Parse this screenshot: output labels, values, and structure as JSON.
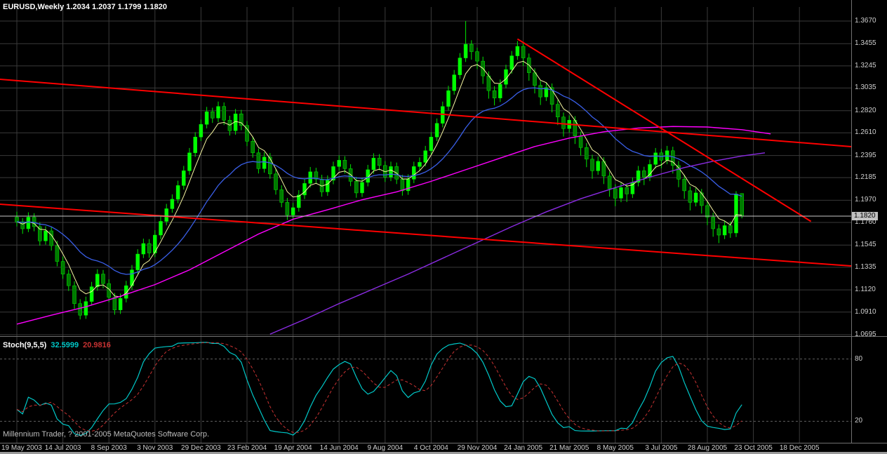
{
  "window": {
    "title": "EURUSD,Weekly 1.2034 1.2037 1.1799 1.1820",
    "symbol": "EURUSD",
    "timeframe": "Weekly",
    "last_bar": {
      "open": "1.2034",
      "high": "1.2037",
      "low": "1.1799",
      "close": "1.1820"
    }
  },
  "colors": {
    "background": "#000000",
    "grid": "#3A3A3A",
    "separator": "#707070",
    "bull": "#00FF00",
    "bear": "#007A00",
    "wick": "#00E600",
    "ma_fast": "#F5F5A0",
    "ma_medium": "#3A5FE8",
    "ma_slow": "#FF00FF",
    "ma_slowest": "#8A2BE2",
    "trendline": "#FF0000",
    "price_line": "#C8C8C8",
    "stoch_k": "#00C8C8",
    "stoch_d": "#C83232",
    "level": "#606060",
    "axis_text": "#CFCFCF",
    "price_tag_bg": "#C0C0C0",
    "price_tag_text": "#000000"
  },
  "price_axis": {
    "labels": [
      "1.3670",
      "1.3455",
      "1.3245",
      "1.3035",
      "1.2820",
      "1.2610",
      "1.2395",
      "1.2185",
      "1.1970",
      "1.1760",
      "1.1545",
      "1.1335",
      "1.1120",
      "1.0910",
      "1.0695"
    ],
    "current": "1.1820"
  },
  "time_axis": {
    "labels": [
      "19 May 2003",
      "14 Jul 2003",
      "8 Sep 2003",
      "3 Nov 2003",
      "29 Dec 2003",
      "23 Feb 2004",
      "19 Apr 2004",
      "14 Jun 2004",
      "9 Aug 2004",
      "4 Oct 2004",
      "29 Nov 2004",
      "24 Jan 2005",
      "21 Mar 2005",
      "8 May 2005",
      "3 Jul 2005",
      "28 Aug 2005",
      "23 Oct 2005",
      "18 Dec 2005"
    ]
  },
  "indicator": {
    "label": "Stoch(9,5,5)",
    "k_value": "32.5999",
    "d_value": "20.9816",
    "levels": [
      "80",
      "20"
    ]
  },
  "footer": {
    "copyright": "Millennium Trader, ? 2001-2005 MetaQuotes Software Corp."
  },
  "chart_data": {
    "type": "candlestick",
    "symbol": "EURUSD",
    "timeframe": "W1",
    "title": "EURUSD,Weekly",
    "y_axis": {
      "min": 1.0695,
      "max": 1.367,
      "grid_step": 0.02125
    },
    "price_gridlines": [
      1.367,
      1.3455,
      1.3245,
      1.3035,
      1.282,
      1.261,
      1.2395,
      1.2185,
      1.197,
      1.176,
      1.1545,
      1.1335,
      1.112,
      1.091,
      1.0695
    ],
    "current_price": 1.182,
    "x_labels": [
      "19 May 2003",
      "14 Jul 2003",
      "8 Sep 2003",
      "3 Nov 2003",
      "29 Dec 2003",
      "23 Feb 2004",
      "19 Apr 2004",
      "14 Jun 2004",
      "9 Aug 2004",
      "4 Oct 2004",
      "29 Nov 2004",
      "24 Jan 2005",
      "21 Mar 2005",
      "8 May 2005",
      "3 Jul 2005",
      "28 Aug 2005",
      "23 Oct 2005",
      "18 Dec 2005"
    ],
    "candles_ohlc": [
      [
        1.181,
        1.1862,
        1.1722,
        1.1766
      ],
      [
        1.1766,
        1.1801,
        1.1652,
        1.17
      ],
      [
        1.17,
        1.1856,
        1.1668,
        1.181
      ],
      [
        1.181,
        1.1848,
        1.1676,
        1.172
      ],
      [
        1.172,
        1.1762,
        1.154,
        1.1585
      ],
      [
        1.1585,
        1.1724,
        1.1549,
        1.168
      ],
      [
        1.168,
        1.1716,
        1.1493,
        1.154
      ],
      [
        1.154,
        1.1585,
        1.1344,
        1.139
      ],
      [
        1.139,
        1.1436,
        1.1225,
        1.127
      ],
      [
        1.127,
        1.1312,
        1.111,
        1.116
      ],
      [
        1.116,
        1.1202,
        1.0941,
        1.099
      ],
      [
        1.099,
        1.1032,
        1.084,
        1.088
      ],
      [
        1.088,
        1.1056,
        1.0845,
        1.101
      ],
      [
        1.101,
        1.1196,
        1.0972,
        1.115
      ],
      [
        1.115,
        1.1316,
        1.1112,
        1.127
      ],
      [
        1.127,
        1.1309,
        1.1136,
        1.118
      ],
      [
        1.118,
        1.1221,
        1.1004,
        1.105
      ],
      [
        1.105,
        1.1091,
        1.0885,
        1.093
      ],
      [
        1.093,
        1.1085,
        1.0892,
        1.104
      ],
      [
        1.104,
        1.1206,
        1.1002,
        1.116
      ],
      [
        1.116,
        1.1356,
        1.1122,
        1.131
      ],
      [
        1.131,
        1.1506,
        1.1272,
        1.146
      ],
      [
        1.146,
        1.1606,
        1.1422,
        1.156
      ],
      [
        1.156,
        1.1602,
        1.1424,
        1.147
      ],
      [
        1.147,
        1.1686,
        1.1432,
        1.164
      ],
      [
        1.164,
        1.1816,
        1.1602,
        1.177
      ],
      [
        1.177,
        1.1936,
        1.1732,
        1.189
      ],
      [
        1.189,
        1.2026,
        1.1852,
        1.198
      ],
      [
        1.198,
        1.2156,
        1.1942,
        1.211
      ],
      [
        1.211,
        1.2296,
        1.2072,
        1.225
      ],
      [
        1.225,
        1.2466,
        1.2212,
        1.242
      ],
      [
        1.242,
        1.2616,
        1.2382,
        1.257
      ],
      [
        1.257,
        1.2736,
        1.2532,
        1.269
      ],
      [
        1.269,
        1.2856,
        1.2652,
        1.281
      ],
      [
        1.281,
        1.2848,
        1.2704,
        1.275
      ],
      [
        1.275,
        1.2906,
        1.2712,
        1.286
      ],
      [
        1.286,
        1.2898,
        1.2684,
        1.273
      ],
      [
        1.273,
        1.2772,
        1.2584,
        1.263
      ],
      [
        1.263,
        1.2836,
        1.2592,
        1.279
      ],
      [
        1.279,
        1.2828,
        1.2634,
        1.268
      ],
      [
        1.268,
        1.2722,
        1.2484,
        1.253
      ],
      [
        1.253,
        1.2572,
        1.2374,
        1.242
      ],
      [
        1.242,
        1.2462,
        1.2224,
        1.227
      ],
      [
        1.227,
        1.2426,
        1.2232,
        1.238
      ],
      [
        1.238,
        1.2418,
        1.2174,
        1.222
      ],
      [
        1.222,
        1.2262,
        1.2024,
        1.207
      ],
      [
        1.207,
        1.2112,
        1.1904,
        1.195
      ],
      [
        1.195,
        1.1992,
        1.1784,
        1.183
      ],
      [
        1.183,
        1.1946,
        1.1792,
        1.19
      ],
      [
        1.19,
        1.2066,
        1.1862,
        1.202
      ],
      [
        1.202,
        1.2176,
        1.1982,
        1.213
      ],
      [
        1.213,
        1.2286,
        1.2092,
        1.224
      ],
      [
        1.224,
        1.2278,
        1.2124,
        1.217
      ],
      [
        1.217,
        1.2212,
        1.2004,
        1.205
      ],
      [
        1.205,
        1.2206,
        1.2012,
        1.216
      ],
      [
        1.216,
        1.2336,
        1.2122,
        1.229
      ],
      [
        1.229,
        1.2396,
        1.2252,
        1.235
      ],
      [
        1.235,
        1.2388,
        1.2224,
        1.227
      ],
      [
        1.227,
        1.2312,
        1.2104,
        1.215
      ],
      [
        1.215,
        1.2192,
        1.1994,
        1.204
      ],
      [
        1.204,
        1.2186,
        1.2002,
        1.214
      ],
      [
        1.214,
        1.2306,
        1.2102,
        1.226
      ],
      [
        1.226,
        1.2416,
        1.2222,
        1.237
      ],
      [
        1.237,
        1.2408,
        1.2254,
        1.23
      ],
      [
        1.23,
        1.2342,
        1.2144,
        1.219
      ],
      [
        1.219,
        1.2336,
        1.2152,
        1.229
      ],
      [
        1.229,
        1.2328,
        1.2124,
        1.217
      ],
      [
        1.217,
        1.2212,
        1.2014,
        1.206
      ],
      [
        1.206,
        1.2216,
        1.2022,
        1.217
      ],
      [
        1.217,
        1.2336,
        1.2132,
        1.229
      ],
      [
        1.229,
        1.2376,
        1.2252,
        1.233
      ],
      [
        1.233,
        1.2486,
        1.2292,
        1.244
      ],
      [
        1.244,
        1.2616,
        1.2402,
        1.257
      ],
      [
        1.257,
        1.2746,
        1.2532,
        1.27
      ],
      [
        1.27,
        1.2906,
        1.2662,
        1.286
      ],
      [
        1.286,
        1.3056,
        1.2822,
        1.301
      ],
      [
        1.301,
        1.3206,
        1.2972,
        1.316
      ],
      [
        1.316,
        1.3366,
        1.3122,
        1.332
      ],
      [
        1.332,
        1.367,
        1.3282,
        1.345
      ],
      [
        1.345,
        1.3488,
        1.3304,
        1.338
      ],
      [
        1.338,
        1.3418,
        1.3214,
        1.329
      ],
      [
        1.329,
        1.3332,
        1.3074,
        1.315
      ],
      [
        1.315,
        1.3192,
        1.2934,
        1.301
      ],
      [
        1.301,
        1.3052,
        1.287,
        1.294
      ],
      [
        1.294,
        1.3116,
        1.2902,
        1.307
      ],
      [
        1.307,
        1.3256,
        1.3032,
        1.321
      ],
      [
        1.321,
        1.3386,
        1.3172,
        1.334
      ],
      [
        1.334,
        1.348,
        1.3302,
        1.343
      ],
      [
        1.343,
        1.3468,
        1.3244,
        1.332
      ],
      [
        1.332,
        1.3362,
        1.3104,
        1.318
      ],
      [
        1.318,
        1.3222,
        1.2984,
        1.306
      ],
      [
        1.306,
        1.3102,
        1.2874,
        1.295
      ],
      [
        1.295,
        1.3086,
        1.2912,
        1.304
      ],
      [
        1.304,
        1.3078,
        1.2804,
        1.288
      ],
      [
        1.288,
        1.2922,
        1.2684,
        1.276
      ],
      [
        1.276,
        1.2802,
        1.2574,
        1.265
      ],
      [
        1.265,
        1.2776,
        1.2612,
        1.273
      ],
      [
        1.273,
        1.2768,
        1.2504,
        1.258
      ],
      [
        1.258,
        1.2622,
        1.2394,
        1.247
      ],
      [
        1.247,
        1.2512,
        1.2284,
        1.236
      ],
      [
        1.236,
        1.2402,
        1.2174,
        1.225
      ],
      [
        1.225,
        1.2386,
        1.2212,
        1.234
      ],
      [
        1.234,
        1.2378,
        1.2124,
        1.22
      ],
      [
        1.22,
        1.2242,
        1.2004,
        1.208
      ],
      [
        1.208,
        1.2122,
        1.1914,
        1.199
      ],
      [
        1.199,
        1.2136,
        1.1952,
        1.209
      ],
      [
        1.209,
        1.2128,
        1.1954,
        1.203
      ],
      [
        1.203,
        1.2186,
        1.1992,
        1.214
      ],
      [
        1.214,
        1.2296,
        1.2102,
        1.225
      ],
      [
        1.225,
        1.2288,
        1.2114,
        1.219
      ],
      [
        1.219,
        1.2356,
        1.2152,
        1.231
      ],
      [
        1.231,
        1.2466,
        1.2272,
        1.242
      ],
      [
        1.242,
        1.2458,
        1.2274,
        1.235
      ],
      [
        1.235,
        1.2486,
        1.2312,
        1.244
      ],
      [
        1.244,
        1.2478,
        1.2224,
        1.23
      ],
      [
        1.23,
        1.2342,
        1.2094,
        1.217
      ],
      [
        1.217,
        1.2212,
        1.1984,
        1.206
      ],
      [
        1.206,
        1.2102,
        1.1874,
        1.195
      ],
      [
        1.195,
        1.2086,
        1.1912,
        1.204
      ],
      [
        1.204,
        1.2078,
        1.1844,
        1.192
      ],
      [
        1.192,
        1.1962,
        1.1734,
        1.181
      ],
      [
        1.181,
        1.1852,
        1.1624,
        1.17
      ],
      [
        1.17,
        1.1742,
        1.1564,
        1.164
      ],
      [
        1.164,
        1.1776,
        1.1602,
        1.173
      ],
      [
        1.173,
        1.1768,
        1.1614,
        1.166
      ],
      [
        1.166,
        1.2056,
        1.1622,
        1.203
      ],
      [
        1.2034,
        1.2037,
        1.1799,
        1.182
      ]
    ],
    "overlays": {
      "ma_fast": {
        "type": "ema",
        "period": 5
      },
      "ma_medium": {
        "type": "ema",
        "period": 20
      },
      "ma_slow": {
        "name": "long-ma-magenta",
        "points": [
          [
            0,
            1.0795
          ],
          [
            6,
            1.088
          ],
          [
            12,
            1.096
          ],
          [
            18,
            1.106
          ],
          [
            24,
            1.117
          ],
          [
            30,
            1.131
          ],
          [
            36,
            1.148
          ],
          [
            42,
            1.165
          ],
          [
            48,
            1.179
          ],
          [
            54,
            1.188
          ],
          [
            60,
            1.1975
          ],
          [
            66,
            1.205
          ],
          [
            72,
            1.215
          ],
          [
            78,
            1.226
          ],
          [
            84,
            1.237
          ],
          [
            90,
            1.248
          ],
          [
            96,
            1.256
          ],
          [
            102,
            1.262
          ],
          [
            108,
            1.2655
          ],
          [
            114,
            1.267
          ],
          [
            120,
            1.2665
          ],
          [
            126,
            1.264
          ],
          [
            131,
            1.26
          ]
        ]
      },
      "ma_slowest": {
        "name": "long-ma-violet",
        "points": [
          [
            44,
            1.07
          ],
          [
            50,
            1.084
          ],
          [
            56,
            1.099
          ],
          [
            62,
            1.113
          ],
          [
            68,
            1.127
          ],
          [
            74,
            1.142
          ],
          [
            80,
            1.157
          ],
          [
            86,
            1.172
          ],
          [
            92,
            1.186
          ],
          [
            98,
            1.1985
          ],
          [
            104,
            1.209
          ],
          [
            110,
            1.219
          ],
          [
            116,
            1.228
          ],
          [
            121,
            1.234
          ],
          [
            126,
            1.239
          ],
          [
            130,
            1.242
          ]
        ]
      },
      "trendlines": [
        {
          "from": [
            -3,
            1.3118
          ],
          "to": [
            145,
            1.2479
          ]
        },
        {
          "from": [
            87,
            1.35
          ],
          "to": [
            138,
            1.177
          ]
        },
        {
          "from": [
            -3,
            1.1933
          ],
          "to": [
            145,
            1.1347
          ]
        }
      ]
    },
    "stochastic": {
      "k_period": 9,
      "slowing": 5,
      "d_period": 5,
      "last_k": 32.5999,
      "last_d": 20.9816,
      "levels": [
        80,
        20
      ]
    }
  }
}
